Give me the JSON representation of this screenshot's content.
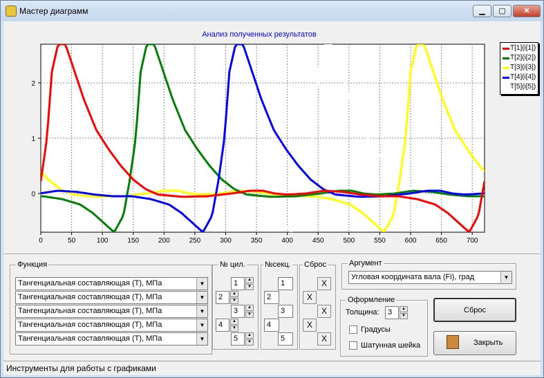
{
  "window": {
    "title": "Мастер диаграмм",
    "min_label": "▁",
    "max_label": "▢",
    "close_label": "✕"
  },
  "chart_data": {
    "type": "line",
    "title": "Анализ полученных результатов",
    "xlim": [
      0,
      720
    ],
    "ylim": [
      -0.7,
      2.7
    ],
    "xticks": [
      0,
      50,
      100,
      150,
      200,
      250,
      300,
      350,
      400,
      450,
      500,
      550,
      600,
      650,
      700
    ],
    "yticks": [
      0,
      1,
      2
    ],
    "grid": true,
    "legend_placement": "right",
    "series": [
      {
        "name": "T[1](i[1])",
        "color": "#ff0000",
        "shift": 0
      },
      {
        "name": "T[2](i[2])",
        "color": "#008000",
        "shift": 144
      },
      {
        "name": "T[3](i[3])",
        "color": "#ffff00",
        "shift": 582
      },
      {
        "name": "T[4](i[4])",
        "color": "#0000ff",
        "shift": 288
      },
      {
        "name": "T[5](i[5])",
        "color": "#ffffff",
        "shift": 432
      }
    ],
    "base_profile": [
      [
        0,
        0.22
      ],
      [
        10,
        1.0
      ],
      [
        18,
        2.2
      ],
      [
        28,
        2.7
      ],
      [
        40,
        2.7
      ],
      [
        55,
        2.2
      ],
      [
        70,
        1.7
      ],
      [
        90,
        1.15
      ],
      [
        110,
        0.8
      ],
      [
        130,
        0.5
      ],
      [
        150,
        0.25
      ],
      [
        170,
        0.08
      ],
      [
        190,
        -0.02
      ],
      [
        230,
        -0.06
      ],
      [
        270,
        -0.05
      ],
      [
        310,
        0.0
      ],
      [
        340,
        0.05
      ],
      [
        360,
        0.05
      ],
      [
        380,
        0.0
      ],
      [
        400,
        -0.02
      ],
      [
        430,
        0.0
      ],
      [
        460,
        0.05
      ],
      [
        490,
        0.03
      ],
      [
        520,
        -0.02
      ],
      [
        550,
        -0.05
      ],
      [
        580,
        -0.05
      ],
      [
        610,
        -0.1
      ],
      [
        640,
        -0.2
      ],
      [
        660,
        -0.35
      ],
      [
        680,
        -0.55
      ],
      [
        695,
        -0.7
      ],
      [
        710,
        -0.4
      ],
      [
        720,
        0.22
      ]
    ]
  },
  "function_group": {
    "label": "Функция",
    "combos": [
      "Тангенциальная составляющая (T), МПа",
      "Тангенциальная составляющая (T), МПа",
      "Тангенциальная составляющая (T), МПа",
      "Тангенциальная составляющая (T), МПа",
      "Тангенциальная составляющая (T), МПа"
    ]
  },
  "cyl_group": {
    "label": "№ цил.",
    "values": [
      "1",
      "2",
      "3",
      "4",
      "5"
    ]
  },
  "sec_group": {
    "label": "№секц.",
    "values": [
      "1",
      "2",
      "3",
      "4",
      "5"
    ]
  },
  "reset_group": {
    "label": "Сброс",
    "buttons": [
      "X",
      "X",
      "X",
      "X",
      "X"
    ]
  },
  "argument_group": {
    "label": "Аргумент",
    "value": "Угловая координата вала (Fi), град"
  },
  "design_group": {
    "label": "Оформление",
    "thickness_label": "Толщина:",
    "thickness_value": "3",
    "degrees_label": "Градусы",
    "crank_label": "Шатунная шейка"
  },
  "buttons": {
    "reset": "Сброс",
    "close": "Закрыть"
  },
  "status": {
    "text": "Инструменты для работы  с графиками"
  }
}
